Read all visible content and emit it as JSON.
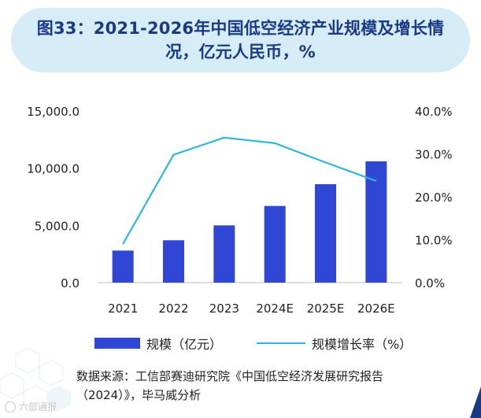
{
  "title": {
    "line1": "图33：2021-2026年中国低空经济产业规模及增长情",
    "line2": "况，亿元人民币，%"
  },
  "chart_data": {
    "type": "bar",
    "categories": [
      "2021",
      "2022",
      "2023",
      "2024E",
      "2025E",
      "2026E"
    ],
    "series": [
      {
        "name": "规模（亿元）",
        "type": "bar",
        "axis": "left",
        "values": [
          2800,
          3700,
          5000,
          6700,
          8600,
          10600
        ]
      },
      {
        "name": "规模增长率（%）",
        "type": "line",
        "axis": "right",
        "values": [
          9.0,
          29.8,
          33.8,
          32.5,
          28.0,
          23.7
        ]
      }
    ],
    "y_left": {
      "ylim": [
        0,
        15000
      ],
      "ticks": [
        "0.0",
        "5,000.0",
        "10,000.0",
        "15,000.0"
      ]
    },
    "y_right": {
      "ylim": [
        0,
        40
      ],
      "ticks": [
        "0.0%",
        "10.0%",
        "20.0%",
        "30.0%",
        "40.0%"
      ]
    },
    "grid": false,
    "legend_position": "bottom",
    "colors": {
      "bar": "#3047d6",
      "line": "#2fb6de"
    }
  },
  "legend": {
    "bar_label": "规模（亿元）",
    "line_label": "规模增长率（%）"
  },
  "source": {
    "line1": "数据来源：工信部赛迪研究院《中国低空经济发展研究报告",
    "line2": "（2024）》，毕马威分析"
  },
  "watermark": {
    "text": "六部通报"
  }
}
